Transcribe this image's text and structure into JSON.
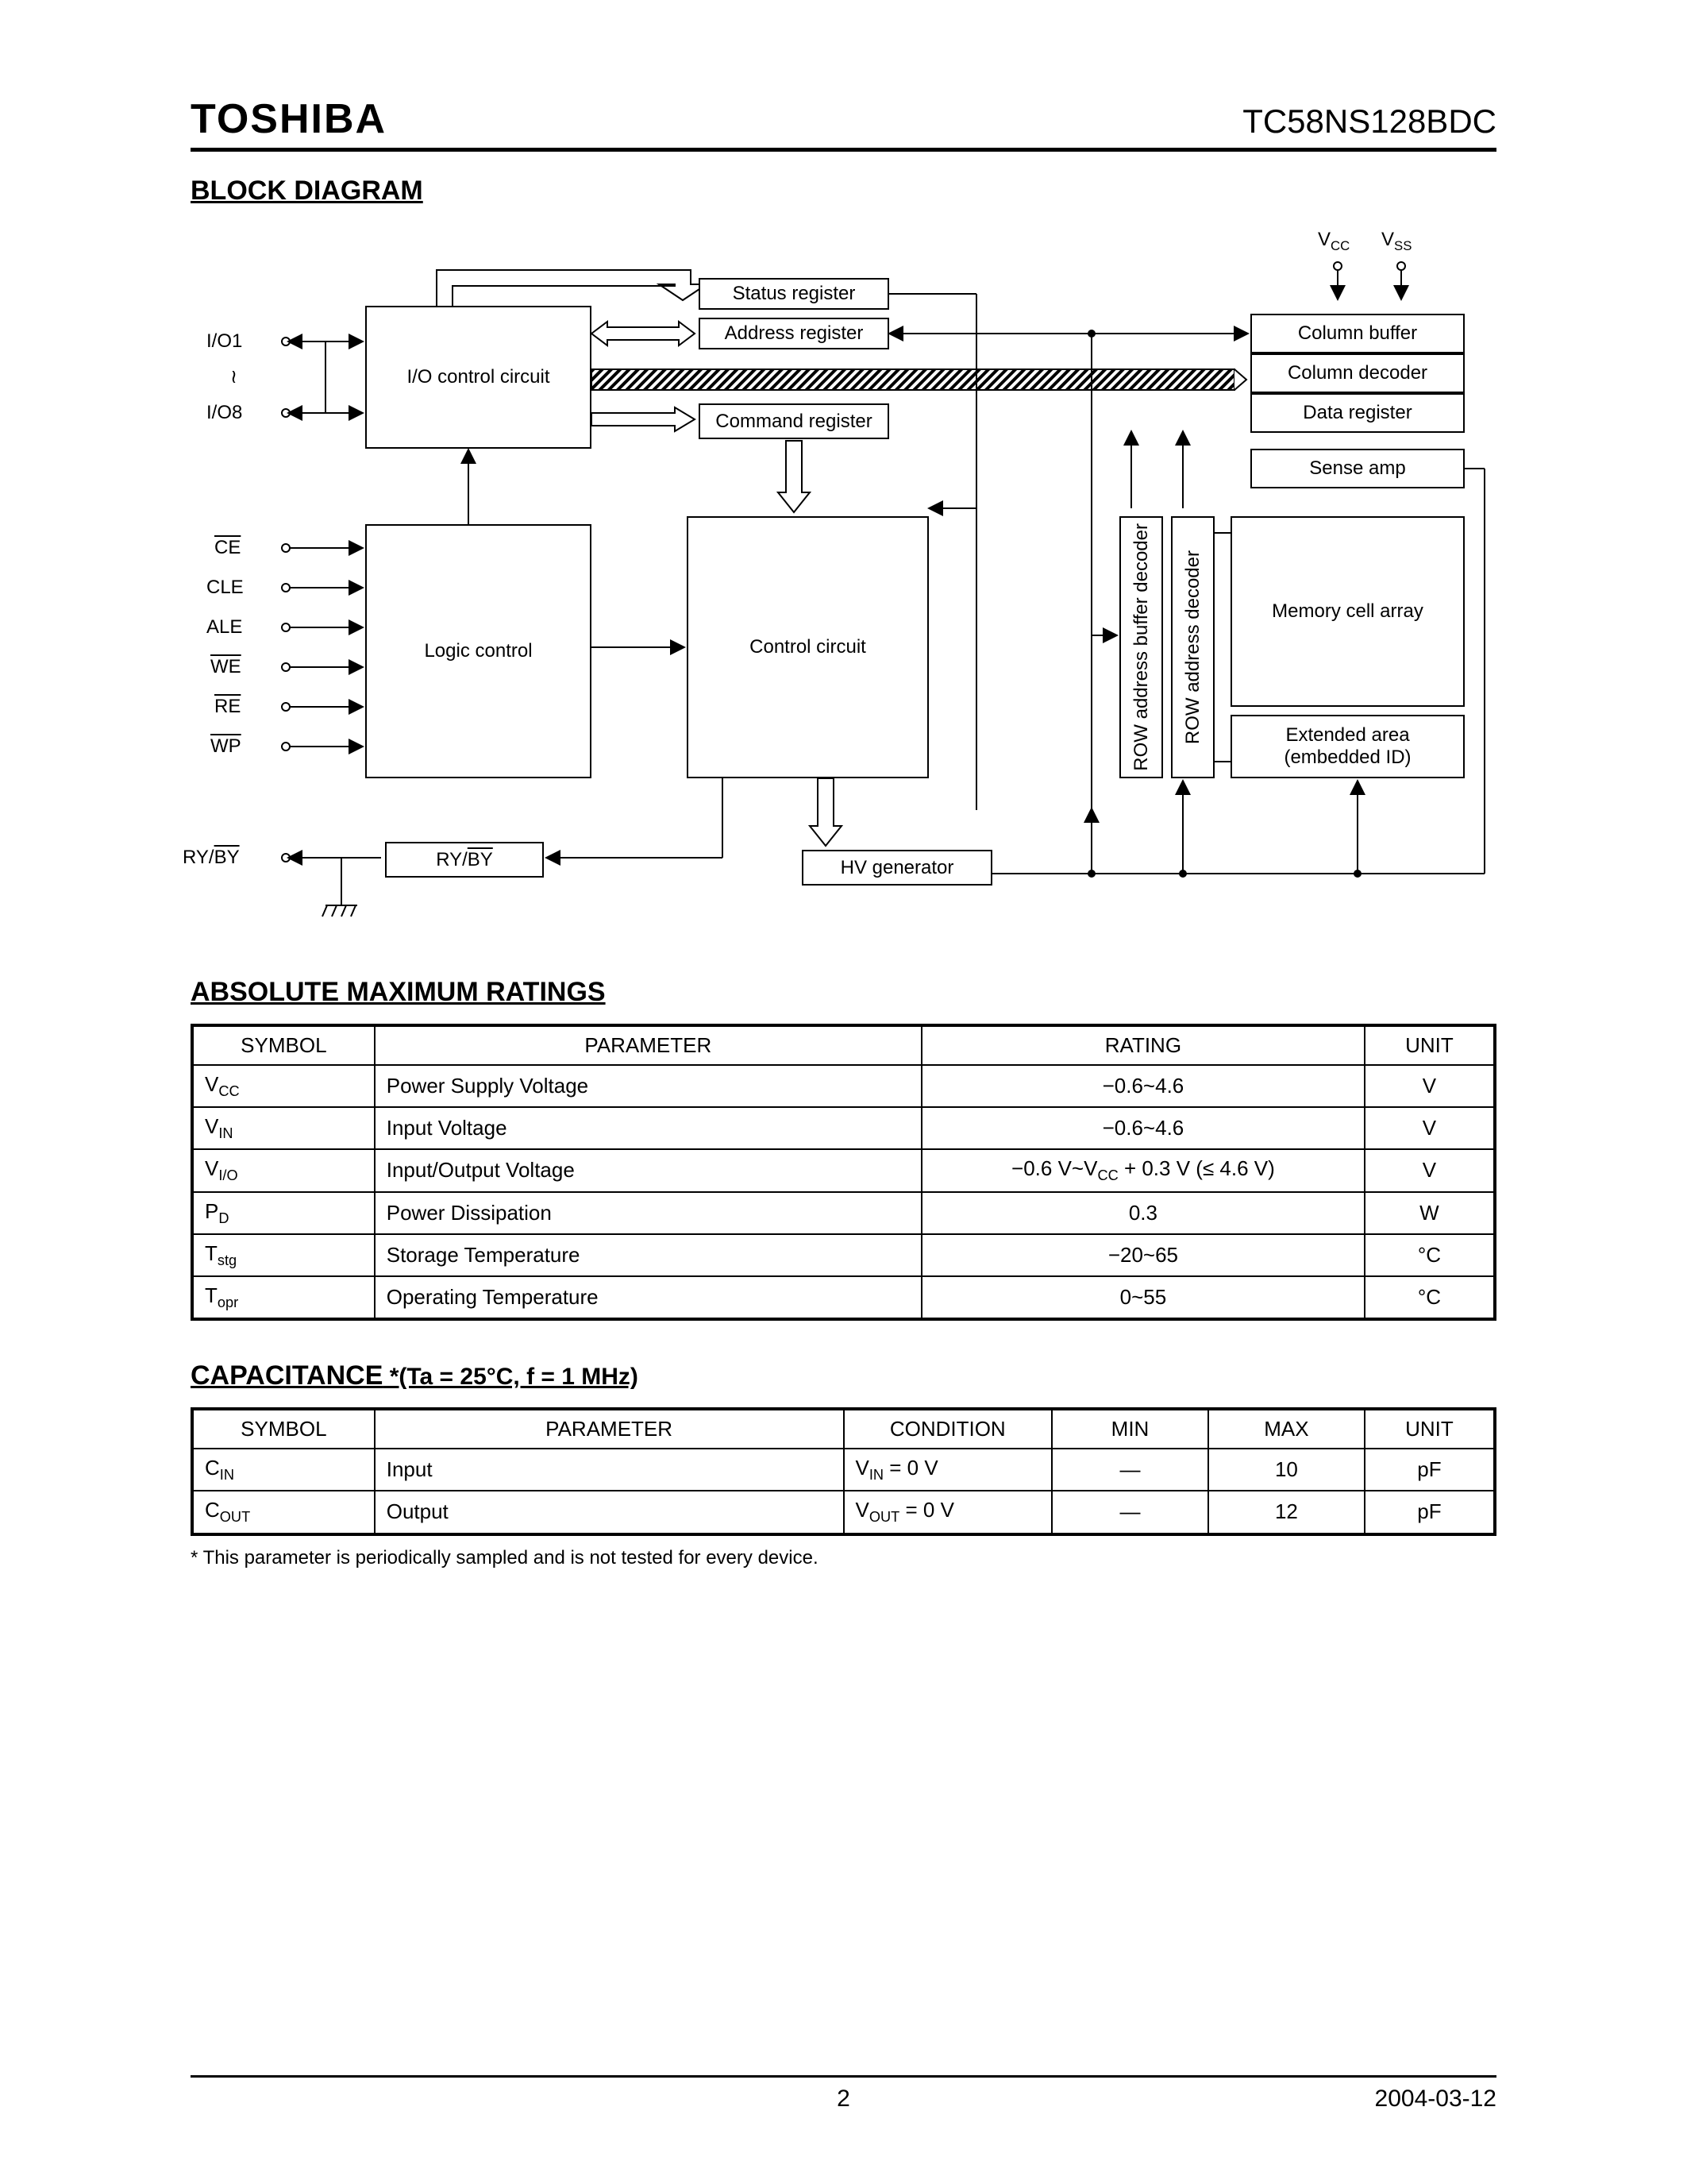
{
  "header": {
    "company": "TOSHIBA",
    "part": "TC58NS128BDC"
  },
  "sections": {
    "block_diagram": "BLOCK DIAGRAM",
    "abs_max": "ABSOLUTE MAXIMUM RATINGS",
    "capacitance": "CAPACITANCE",
    "cap_sub": " *(Ta = 25°C, f = 1 MHz)"
  },
  "diagram": {
    "blocks": {
      "io_control": "I/O control circuit",
      "status_reg": "Status register",
      "addr_reg": "Address register",
      "cmd_reg": "Command register",
      "logic_ctrl": "Logic control",
      "ctrl_circuit": "Control circuit",
      "ryby": "RY/BY",
      "hv_gen": "HV generator",
      "row_buf": "ROW address buffer decoder",
      "row_dec": "ROW address decoder",
      "col_buf": "Column buffer",
      "col_dec": "Column decoder",
      "data_reg": "Data register",
      "sense_amp": "Sense amp",
      "mem_array": "Memory cell array",
      "ext_area_l1": "Extended area",
      "ext_area_l2": "(embedded ID)"
    },
    "pins": {
      "io1": "I/O1",
      "wavy": "≀",
      "io8": "I/O8",
      "ce": "CE",
      "cle": "CLE",
      "ale": "ALE",
      "we": "WE",
      "re": "RE",
      "wp": "WP",
      "ryby": "RY/BY",
      "vcc": "V",
      "vcc_sub": "CC",
      "vss": "V",
      "vss_sub": "SS"
    }
  },
  "ratings": {
    "columns": [
      "SYMBOL",
      "PARAMETER",
      "RATING",
      "UNIT"
    ],
    "rows": [
      {
        "sym": "V",
        "sub": "CC",
        "param": "Power Supply Voltage",
        "rating": "−0.6~4.6",
        "unit": "V"
      },
      {
        "sym": "V",
        "sub": "IN",
        "param": "Input Voltage",
        "rating": "−0.6~4.6",
        "unit": "V"
      },
      {
        "sym": "V",
        "sub": "I/O",
        "param": "Input/Output Voltage",
        "rating": "−0.6 V~VCC + 0.3 V (≤ 4.6 V)",
        "unit": "V"
      },
      {
        "sym": "P",
        "sub": "D",
        "param": "Power Dissipation",
        "rating": "0.3",
        "unit": "W"
      },
      {
        "sym": "T",
        "sub": "stg",
        "param": "Storage Temperature",
        "rating": "−20~65",
        "unit": "°C"
      },
      {
        "sym": "T",
        "sub": "opr",
        "param": "Operating Temperature",
        "rating": "0~55",
        "unit": "°C"
      }
    ]
  },
  "capacitance": {
    "columns": [
      "SYMBOL",
      "PARAMETER",
      "CONDITION",
      "MIN",
      "MAX",
      "UNIT"
    ],
    "rows": [
      {
        "sym": "C",
        "sub": "IN",
        "param": "Input",
        "cond_pre": "V",
        "cond_sub": "IN",
        "cond_post": " = 0 V",
        "min": "—",
        "max": "10",
        "unit": "pF"
      },
      {
        "sym": "C",
        "sub": "OUT",
        "param": "Output",
        "cond_pre": "V",
        "cond_sub": "OUT",
        "cond_post": " = 0 V",
        "min": "—",
        "max": "12",
        "unit": "pF"
      }
    ]
  },
  "footnote": "* This parameter is periodically sampled and is not tested for every device.",
  "footer": {
    "page": "2",
    "date": "2004-03-12"
  }
}
